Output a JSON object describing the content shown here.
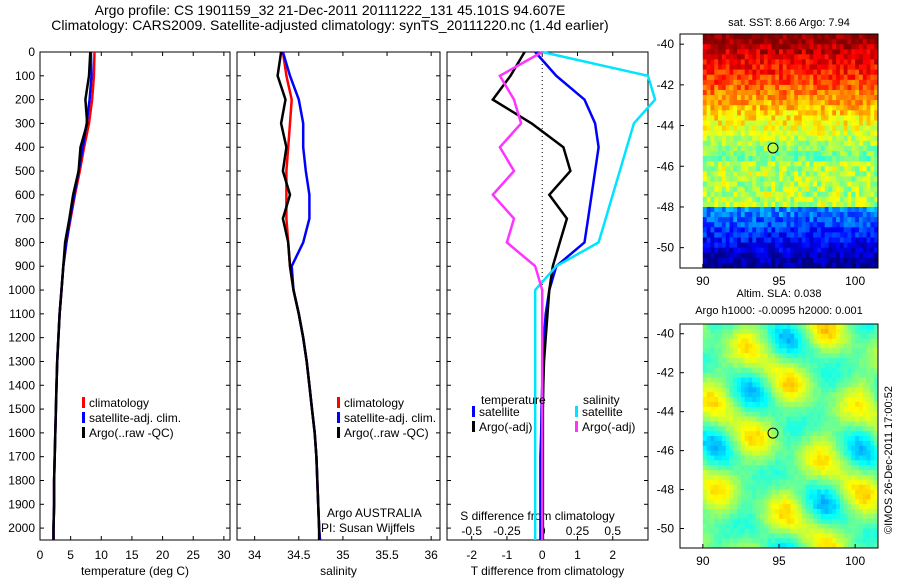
{
  "header": {
    "line1": "Argo profile: CS 1901159_32 21-Dec-2011 20111222_131 45.101S 94.607E",
    "line2": "Climatology: CARS2009. Satellite-adjusted climatology: synTS_20111220.nc (1.4d earlier)"
  },
  "side_label": "©IMOS 26-Dec-2011 17:00:52",
  "colors": {
    "climatology": "#ff0000",
    "satellite": "#0000ff",
    "argo": "#000000",
    "salinity_satellite": "#00e5ff",
    "salinity_argo": "#ff33ff"
  },
  "chart_data": [
    {
      "id": "temperature",
      "type": "line",
      "xlabel": "temperature (deg C)",
      "xlim": [
        0,
        31
      ],
      "xticks": [
        0,
        5,
        10,
        15,
        20,
        25,
        30
      ],
      "ylim": [
        2050,
        0
      ],
      "yticks": [
        0,
        100,
        200,
        300,
        400,
        500,
        600,
        700,
        800,
        900,
        1000,
        1100,
        1200,
        1300,
        1400,
        1500,
        1600,
        1700,
        1800,
        1900,
        2000
      ],
      "legend": [
        "climatology",
        "satellite-adj. clim.",
        "Argo(..raw -QC)"
      ],
      "series": [
        {
          "name": "climatology",
          "color": "#ff0000",
          "x": [
            8.9,
            8.8,
            8.5,
            8.0,
            7.2,
            6.5,
            5.7,
            5.0,
            4.3,
            3.8,
            3.5,
            3.2,
            3.0,
            2.8,
            2.7,
            2.6,
            2.5,
            2.4,
            2.3,
            2.3,
            2.2,
            2.2
          ],
          "y": [
            0,
            100,
            200,
            300,
            400,
            500,
            600,
            700,
            800,
            900,
            1000,
            1100,
            1200,
            1300,
            1400,
            1500,
            1600,
            1700,
            1800,
            1900,
            2000,
            2050
          ]
        },
        {
          "name": "satellite-adj. clim.",
          "color": "#0000ff",
          "x": [
            8.3,
            8.4,
            8.1,
            7.6,
            7.0,
            6.3,
            5.6,
            4.9,
            4.3,
            3.8,
            3.5,
            3.2,
            3.0,
            2.8,
            2.7,
            2.6,
            2.5,
            2.4,
            2.3,
            2.3,
            2.2,
            2.2
          ],
          "y": [
            0,
            100,
            200,
            300,
            400,
            500,
            600,
            700,
            800,
            900,
            1000,
            1100,
            1200,
            1300,
            1400,
            1500,
            1600,
            1700,
            1800,
            1900,
            2000,
            2050
          ]
        },
        {
          "name": "Argo(..raw -QC)",
          "color": "#000000",
          "x": [
            8.2,
            8.0,
            7.4,
            7.7,
            6.6,
            6.3,
            5.4,
            4.8,
            4.1,
            3.8,
            3.5,
            3.2,
            3.0,
            2.8,
            2.7,
            2.6,
            2.5,
            2.4,
            2.3,
            2.3,
            2.2,
            2.2
          ],
          "y": [
            0,
            100,
            200,
            300,
            400,
            500,
            600,
            700,
            800,
            900,
            1000,
            1100,
            1200,
            1300,
            1400,
            1500,
            1600,
            1700,
            1800,
            1900,
            2000,
            2050
          ]
        }
      ]
    },
    {
      "id": "salinity",
      "type": "line",
      "xlabel": "salinity",
      "xlim": [
        33.8,
        36.1
      ],
      "xticks": [
        34,
        34.5,
        35,
        35.5,
        36
      ],
      "ylim": [
        2050,
        0
      ],
      "legend": [
        "climatology",
        "satellite-adj. clim.",
        "Argo(..raw -QC)"
      ],
      "annotation": [
        "Argo AUSTRALIA",
        "PI: Susan Wijffels"
      ],
      "series": [
        {
          "name": "climatology",
          "color": "#ff0000",
          "x": [
            34.32,
            34.36,
            34.42,
            34.4,
            34.38,
            34.36,
            34.36,
            34.36,
            34.38,
            34.4,
            34.44,
            34.5,
            34.55,
            34.59,
            34.62,
            34.65,
            34.68,
            34.7,
            34.71,
            34.72,
            34.73,
            34.74
          ],
          "y": [
            0,
            100,
            200,
            300,
            400,
            500,
            600,
            700,
            800,
            900,
            1000,
            1100,
            1200,
            1300,
            1400,
            1500,
            1600,
            1700,
            1800,
            1900,
            2000,
            2050
          ]
        },
        {
          "name": "satellite-adj. clim.",
          "color": "#0000ff",
          "x": [
            34.32,
            34.4,
            34.5,
            34.55,
            34.55,
            34.58,
            34.62,
            34.62,
            34.55,
            34.42,
            34.44,
            34.5,
            34.55,
            34.59,
            34.62,
            34.65,
            34.68,
            34.7,
            34.71,
            34.72,
            34.73,
            34.74
          ],
          "y": [
            0,
            100,
            200,
            300,
            400,
            500,
            600,
            700,
            800,
            900,
            1000,
            1100,
            1200,
            1300,
            1400,
            1500,
            1600,
            1700,
            1800,
            1900,
            2000,
            2050
          ]
        },
        {
          "name": "Argo(..raw -QC)",
          "color": "#000000",
          "x": [
            34.3,
            34.26,
            34.35,
            34.3,
            34.36,
            34.32,
            34.4,
            34.32,
            34.38,
            34.4,
            34.44,
            34.5,
            34.55,
            34.59,
            34.62,
            34.65,
            34.68,
            34.7,
            34.71,
            34.72,
            34.73,
            34.73
          ],
          "y": [
            0,
            100,
            200,
            300,
            400,
            500,
            600,
            700,
            800,
            900,
            1000,
            1100,
            1200,
            1300,
            1400,
            1500,
            1600,
            1700,
            1800,
            1900,
            2000,
            2050
          ]
        }
      ]
    },
    {
      "id": "difference",
      "type": "line",
      "xlabel": "T difference from climatology",
      "top_axis_label": "S difference from climatology",
      "xlim": [
        -2.7,
        3.0
      ],
      "xticks": [
        -2,
        -1,
        0,
        1,
        2
      ],
      "s_ticks": [
        -0.5,
        -0.25,
        0,
        0.25,
        0.5
      ],
      "s_tick_labels": [
        "-0.5",
        "-0.25",
        "0",
        "0.25",
        "0.5"
      ],
      "legend_temperature_title": "temperature",
      "legend_salinity_title": "salinity",
      "legend_temperature": [
        "satellite",
        "Argo(-adj)"
      ],
      "legend_salinity": [
        "satellite",
        "Argo(-adj)"
      ],
      "series": [
        {
          "name": "satellite",
          "group": "temperature",
          "color": "#0000ff",
          "x": [
            -0.2,
            0.4,
            1.2,
            1.5,
            1.6,
            1.5,
            1.4,
            1.3,
            1.2,
            0.4,
            0.2,
            0.1,
            0.05,
            0.0,
            0.0,
            -0.02,
            -0.03,
            -0.05,
            -0.05,
            -0.05,
            -0.05,
            -0.05
          ],
          "y": [
            0,
            100,
            200,
            300,
            400,
            500,
            600,
            700,
            800,
            900,
            1000,
            1100,
            1200,
            1300,
            1400,
            1500,
            1600,
            1700,
            1800,
            1900,
            2000,
            2050
          ]
        },
        {
          "name": "Argo(-adj)",
          "group": "temperature",
          "color": "#000000",
          "x": [
            -0.5,
            -0.9,
            -1.4,
            -0.3,
            0.6,
            0.8,
            0.2,
            0.7,
            0.5,
            0.3,
            0.2,
            0.15,
            0.1,
            0.05,
            0.03,
            0.02,
            0.02,
            0.02,
            0.02,
            0.02,
            0.02,
            0.02
          ],
          "y": [
            0,
            100,
            200,
            300,
            400,
            500,
            600,
            700,
            800,
            900,
            1000,
            1100,
            1200,
            1300,
            1400,
            1500,
            1600,
            1700,
            1800,
            1900,
            2000,
            2050
          ]
        },
        {
          "name": "satellite",
          "group": "salinity",
          "color": "#00e5ff",
          "x": [
            0.0,
            0.75,
            0.8,
            0.65,
            0.6,
            0.55,
            0.5,
            0.45,
            0.4,
            0.1,
            -0.05,
            -0.05,
            -0.05,
            -0.05,
            -0.05,
            -0.05,
            -0.05,
            -0.05,
            -0.05,
            -0.05,
            -0.05,
            -0.05
          ],
          "y": [
            0,
            100,
            200,
            300,
            400,
            500,
            600,
            700,
            800,
            900,
            1000,
            1100,
            1200,
            1300,
            1400,
            1500,
            1600,
            1700,
            1800,
            1900,
            2000,
            2050
          ]
        },
        {
          "name": "Argo(-adj)",
          "group": "salinity",
          "color": "#ff33ff",
          "x": [
            0.0,
            -0.3,
            -0.2,
            -0.15,
            -0.3,
            -0.2,
            -0.35,
            -0.2,
            -0.25,
            -0.05,
            0.0,
            0.0,
            0.0,
            0.0,
            0.0,
            0.0,
            0.0,
            0.0,
            0.0,
            0.0,
            0.0,
            0.0
          ],
          "y": [
            0,
            100,
            200,
            300,
            400,
            500,
            600,
            700,
            800,
            900,
            1000,
            1100,
            1200,
            1300,
            1400,
            1500,
            1600,
            1700,
            1800,
            1900,
            2000,
            2050
          ]
        }
      ]
    },
    {
      "id": "sst_map",
      "type": "heatmap",
      "title": "sat. SST: 8.66 Argo: 7.94",
      "xlim": [
        88.5,
        101.5
      ],
      "ylim": [
        -51,
        -39.5
      ],
      "xticks": [
        90,
        95,
        100
      ],
      "yticks": [
        -40,
        -42,
        -44,
        -46,
        -48,
        -50
      ],
      "marker": {
        "lon": 94.607,
        "lat": -45.101
      },
      "colormap": "jet",
      "data_lon_range": [
        90,
        101.5
      ]
    },
    {
      "id": "sla_map",
      "type": "heatmap",
      "title_line1": "Altim. SLA: 0.038",
      "title_line2": "Argo h1000: -0.0095 h2000: 0.001",
      "xlim": [
        88.5,
        101.5
      ],
      "ylim": [
        -51,
        -39.5
      ],
      "xticks": [
        90,
        95,
        100
      ],
      "yticks": [
        -40,
        -42,
        -44,
        -46,
        -48,
        -50
      ],
      "marker": {
        "lon": 94.607,
        "lat": -45.101
      },
      "colormap": "jet",
      "data_lon_range": [
        90,
        101.5
      ]
    }
  ]
}
